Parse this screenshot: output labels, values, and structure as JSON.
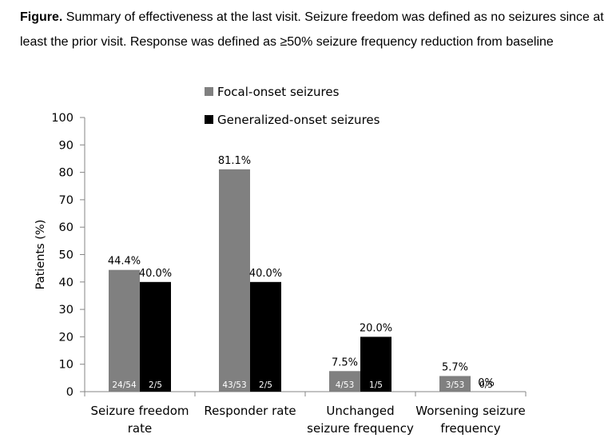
{
  "caption": {
    "bold_prefix": "Figure.",
    "text": " Summary of effectiveness at the last visit. Seizure freedom was defined as no seizures since at least the prior visit. Response was defined as ≥50% seizure frequency reduction from baseline"
  },
  "chart_data": {
    "type": "bar",
    "title": "",
    "xlabel": "",
    "ylabel": "Patients (%)",
    "ylim": [
      0,
      100
    ],
    "yticks": [
      0,
      10,
      20,
      30,
      40,
      50,
      60,
      70,
      80,
      90,
      100
    ],
    "grid": false,
    "legend_position": "top-center",
    "categories": [
      [
        "Seizure freedom",
        "rate"
      ],
      [
        "Responder rate"
      ],
      [
        "Unchanged",
        "seizure frequency"
      ],
      [
        "Worsening seizure",
        "frequency"
      ]
    ],
    "series": [
      {
        "name": "Focal-onset seizures",
        "color": "#808080",
        "values": [
          44.4,
          81.1,
          7.5,
          5.7
        ],
        "value_labels": [
          "44.4%",
          "81.1%",
          "7.5%",
          "5.7%"
        ],
        "count_labels": [
          "24/54",
          "43/53",
          "4/53",
          "3/53"
        ]
      },
      {
        "name": "Generalized-onset seizures",
        "color": "#000000",
        "values": [
          40.0,
          40.0,
          20.0,
          0
        ],
        "value_labels": [
          "40.0%",
          "40.0%",
          "20.0%",
          "0%"
        ],
        "count_labels": [
          "2/5",
          "2/5",
          "1/5",
          "0/5"
        ]
      }
    ]
  }
}
